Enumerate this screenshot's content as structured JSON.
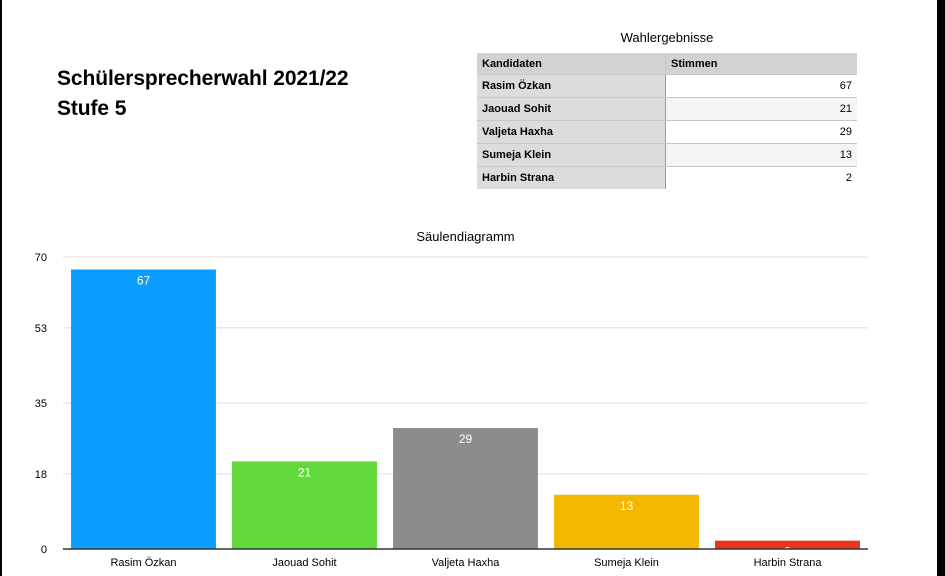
{
  "heading": {
    "line1": "Schülersprecherwahl 2021/22",
    "line2": "Stufe 5"
  },
  "table": {
    "title": "Wahlergebnisse",
    "headers": [
      "Kandidaten",
      "Stimmen"
    ],
    "rows": [
      {
        "name": "Rasim Özkan",
        "votes": "67"
      },
      {
        "name": "Jaouad Sohit",
        "votes": "21"
      },
      {
        "name": "Valjeta Haxha",
        "votes": "29"
      },
      {
        "name": "Sumeja Klein",
        "votes": "13"
      },
      {
        "name": "Harbin Strana",
        "votes": "2"
      }
    ]
  },
  "chart_data": {
    "type": "bar",
    "title": "Säulendiagramm",
    "xlabel": "",
    "ylabel": "",
    "categories": [
      "Rasim Özkan",
      "Jaouad Sohit",
      "Valjeta Haxha",
      "Sumeja Klein",
      "Harbin Strana"
    ],
    "values": [
      67,
      21,
      29,
      13,
      2
    ],
    "colors": [
      "#0a9dff",
      "#62d93a",
      "#8c8c8c",
      "#f5b800",
      "#e8341c"
    ],
    "ylim": [
      0,
      70
    ],
    "yticks": [
      0,
      18,
      35,
      53,
      70
    ],
    "grid": true,
    "legend": "none",
    "data_labels": true
  }
}
